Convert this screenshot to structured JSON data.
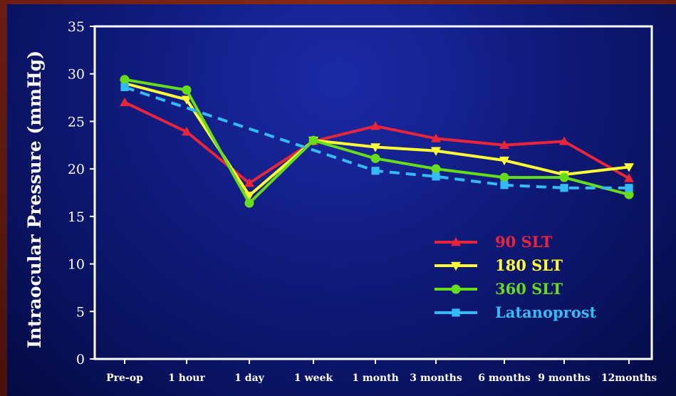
{
  "chart_data": {
    "type": "line",
    "ylabel": "Intraocular Pressure (mmHg)",
    "xlabel": "",
    "ylim": [
      0,
      35
    ],
    "yticks": [
      0,
      5,
      10,
      15,
      20,
      25,
      30,
      35
    ],
    "categories": [
      "Pre-op",
      "1 hour",
      "1 day",
      "1 week",
      "1 month",
      "3 months",
      "6 months",
      "9 months",
      "12months"
    ],
    "legend_position": "lower-right",
    "series": [
      {
        "name": "90 SLT",
        "color": "#e8253a",
        "marker": "triangle-up",
        "dashed": false,
        "values": [
          27.0,
          23.9,
          18.5,
          22.9,
          24.5,
          23.2,
          22.5,
          22.9,
          19.0
        ]
      },
      {
        "name": "180 SLT",
        "color": "#ffff33",
        "marker": "triangle-down",
        "dashed": false,
        "values": [
          29.0,
          27.3,
          17.2,
          23.0,
          22.3,
          21.9,
          20.9,
          19.4,
          20.2
        ]
      },
      {
        "name": "360 SLT",
        "color": "#66dd1a",
        "marker": "circle",
        "dashed": false,
        "values": [
          29.4,
          28.3,
          16.4,
          23.0,
          21.1,
          20.0,
          19.1,
          19.1,
          17.3
        ]
      },
      {
        "name": "Latanoprost",
        "color": "#33bbf5",
        "marker": "square",
        "dashed": true,
        "values": [
          28.6,
          null,
          null,
          null,
          19.8,
          19.2,
          18.3,
          18.0,
          18.0
        ]
      }
    ]
  }
}
